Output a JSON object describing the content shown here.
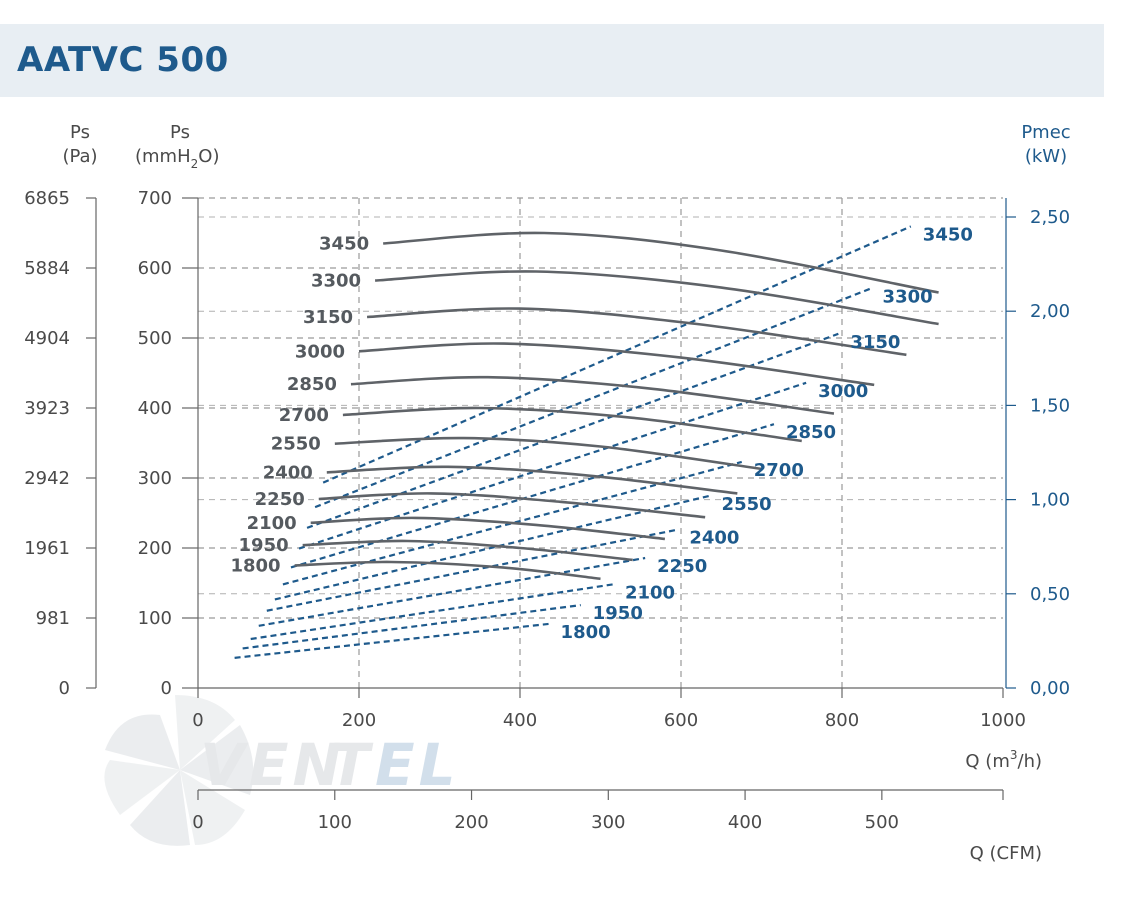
{
  "title": "AATVC 500",
  "logo_text": "VENTEL",
  "colors": {
    "pressure_curve": "#5f6368",
    "power_curve": "#1e5a8c",
    "grid": "#999999",
    "title": "#1e5a8c",
    "title_bg": "#e8eef3"
  },
  "axes": {
    "left_pa": {
      "title_line1": "Ps",
      "title_line2": "(Pa)",
      "ticks": [
        "6865",
        "5884",
        "4904",
        "3923",
        "2942",
        "1961",
        "981",
        "0"
      ]
    },
    "left_mm": {
      "title_line1": "Ps",
      "title_line2": "(mmH",
      "title_sub": "2",
      "title_line2_end": "O)",
      "ticks": [
        "700",
        "600",
        "500",
        "400",
        "300",
        "200",
        "100",
        "0"
      ]
    },
    "right_kw": {
      "title_line1": "Pmec",
      "title_line2": "(kW)",
      "ticks": [
        "2,50",
        "2,00",
        "1,50",
        "1,00",
        "0,50",
        "0,00"
      ]
    },
    "bottom_m3h": {
      "title": "Q (m",
      "title_sup": "3",
      "title_end": "/h)",
      "ticks": [
        "0",
        "200",
        "400",
        "600",
        "800",
        "1000"
      ]
    },
    "bottom_cfm": {
      "title": "Q (CFM)",
      "ticks": [
        "0",
        "100",
        "200",
        "300",
        "400",
        "500"
      ]
    }
  },
  "chart_data": {
    "type": "line",
    "title": "AATVC 500",
    "x_axis": {
      "label": "Q (m3/h)",
      "range": [
        0,
        1000
      ]
    },
    "y_axis_left": {
      "label": "Ps (mmH2O)",
      "range": [
        0,
        700
      ]
    },
    "y_axis_right": {
      "label": "Pmec (kW)",
      "range": [
        0,
        2.6
      ]
    },
    "pressure_series": [
      {
        "name": "3450",
        "points": [
          [
            230,
            635
          ],
          [
            430,
            650
          ],
          [
            650,
            625
          ],
          [
            920,
            565
          ]
        ]
      },
      {
        "name": "3300",
        "points": [
          [
            220,
            582
          ],
          [
            420,
            595
          ],
          [
            650,
            572
          ],
          [
            920,
            520
          ]
        ]
      },
      {
        "name": "3150",
        "points": [
          [
            210,
            530
          ],
          [
            400,
            542
          ],
          [
            620,
            520
          ],
          [
            880,
            476
          ]
        ]
      },
      {
        "name": "3000",
        "points": [
          [
            200,
            481
          ],
          [
            380,
            492
          ],
          [
            600,
            472
          ],
          [
            840,
            433
          ]
        ]
      },
      {
        "name": "2850",
        "points": [
          [
            190,
            434
          ],
          [
            360,
            444
          ],
          [
            560,
            428
          ],
          [
            790,
            392
          ]
        ]
      },
      {
        "name": "2700",
        "points": [
          [
            180,
            390
          ],
          [
            350,
            400
          ],
          [
            540,
            386
          ],
          [
            750,
            353
          ]
        ]
      },
      {
        "name": "2550",
        "points": [
          [
            170,
            349
          ],
          [
            330,
            357
          ],
          [
            500,
            345
          ],
          [
            700,
            313
          ]
        ]
      },
      {
        "name": "2400",
        "points": [
          [
            160,
            308
          ],
          [
            310,
            316
          ],
          [
            480,
            304
          ],
          [
            670,
            278
          ]
        ]
      },
      {
        "name": "2250",
        "points": [
          [
            150,
            270
          ],
          [
            290,
            278
          ],
          [
            450,
            266
          ],
          [
            630,
            244
          ]
        ]
      },
      {
        "name": "2100",
        "points": [
          [
            140,
            236
          ],
          [
            270,
            243
          ],
          [
            420,
            233
          ],
          [
            580,
            213
          ]
        ]
      },
      {
        "name": "1950",
        "points": [
          [
            130,
            204
          ],
          [
            260,
            210
          ],
          [
            400,
            200
          ],
          [
            540,
            183
          ]
        ]
      },
      {
        "name": "1800",
        "points": [
          [
            120,
            175
          ],
          [
            240,
            180
          ],
          [
            380,
            172
          ],
          [
            500,
            156
          ]
        ]
      }
    ],
    "power_series": [
      {
        "name": "3450",
        "points": [
          [
            230,
            1.09
          ],
          [
            960,
            2.45
          ]
        ]
      },
      {
        "name": "3300",
        "points": [
          [
            220,
            0.96
          ],
          [
            910,
            2.12
          ]
        ]
      },
      {
        "name": "3150",
        "points": [
          [
            210,
            0.85
          ],
          [
            870,
            1.88
          ]
        ]
      },
      {
        "name": "3000",
        "points": [
          [
            200,
            0.74
          ],
          [
            830,
            1.62
          ]
        ]
      },
      {
        "name": "2850",
        "points": [
          [
            190,
            0.64
          ],
          [
            790,
            1.4
          ]
        ]
      },
      {
        "name": "2700",
        "points": [
          [
            180,
            0.55
          ],
          [
            750,
            1.2
          ]
        ]
      },
      {
        "name": "2550",
        "points": [
          [
            170,
            0.47
          ],
          [
            710,
            1.02
          ]
        ]
      },
      {
        "name": "2400",
        "points": [
          [
            160,
            0.41
          ],
          [
            670,
            0.84
          ]
        ]
      },
      {
        "name": "2250",
        "points": [
          [
            150,
            0.33
          ],
          [
            630,
            0.69
          ]
        ]
      },
      {
        "name": "2100",
        "points": [
          [
            140,
            0.26
          ],
          [
            590,
            0.55
          ]
        ]
      },
      {
        "name": "1950",
        "points": [
          [
            130,
            0.21
          ],
          [
            550,
            0.44
          ]
        ]
      },
      {
        "name": "1800",
        "points": [
          [
            120,
            0.16
          ],
          [
            510,
            0.34
          ]
        ]
      }
    ]
  }
}
